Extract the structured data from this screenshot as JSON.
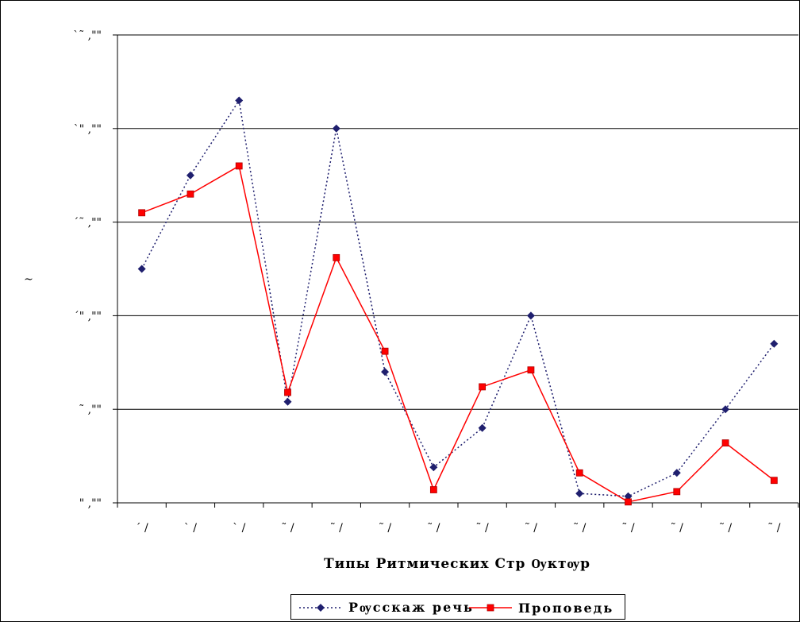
{
  "chart_data": {
    "type": "line",
    "title": "",
    "xlabel": "Типы Ритмических Стр Ѹктѹр",
    "ylabel": "~",
    "categories": [
      "´ /",
      "` /",
      "` /",
      "˜ /",
      "˜ /",
      "˜ /",
      "˜ /",
      "˜ /",
      "˜ /",
      "˜ /",
      "˜ /",
      "˜ /",
      "˜ /",
      "˜ /"
    ],
    "y_tick_labels": [
      "\" ,\"\"",
      "˜ ,\"\"",
      "´\" ,\"\"",
      "´˜ ,\"\"",
      "`\" ,\"\"",
      "`˜ ,\"\""
    ],
    "ylim": [
      0,
      25
    ],
    "grid": true,
    "legend_position": "bottom",
    "series": [
      {
        "name": "Рѹсскаж речь",
        "color": "#1f1f6e",
        "marker": "diamond",
        "line": "dotted",
        "values": [
          12.5,
          17.5,
          21.5,
          5.4,
          20.0,
          7.0,
          1.9,
          4.0,
          10.0,
          0.5,
          0.35,
          1.6,
          5.0,
          8.5
        ]
      },
      {
        "name": "Проповедь",
        "color": "#ff0000",
        "marker": "square",
        "line": "solid",
        "values": [
          15.5,
          16.5,
          18.0,
          5.9,
          13.1,
          8.1,
          0.7,
          6.2,
          7.1,
          1.6,
          0.05,
          0.6,
          3.2,
          1.2
        ]
      }
    ]
  }
}
